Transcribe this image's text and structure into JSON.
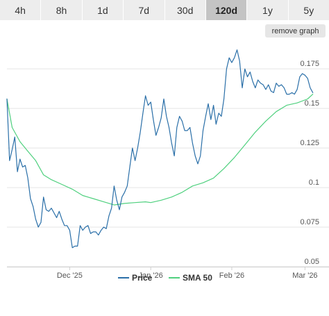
{
  "tabs": [
    {
      "label": "4h",
      "active": false
    },
    {
      "label": "8h",
      "active": false
    },
    {
      "label": "1d",
      "active": false
    },
    {
      "label": "7d",
      "active": false
    },
    {
      "label": "30d",
      "active": false
    },
    {
      "label": "120d",
      "active": true
    },
    {
      "label": "1y",
      "active": false
    },
    {
      "label": "5y",
      "active": false
    }
  ],
  "remove_graph_label": "remove graph",
  "colors": {
    "price": "#2a6fa8",
    "sma": "#4fd07e",
    "grid": "#e5e5e5",
    "axis_line": "#cfcfcf",
    "tab_bg": "#ededed",
    "tab_active_bg": "#c4c4c4"
  },
  "chart_data": {
    "type": "line",
    "y_axis": {
      "position": "right",
      "min": 0.05,
      "max": 0.19,
      "ticks": [
        0.05,
        0.075,
        0.1,
        0.125,
        0.15,
        0.175
      ],
      "tick_labels": [
        "0.05",
        "0.075",
        "0.1",
        "0.125",
        "0.15",
        "0.175"
      ]
    },
    "x_axis": {
      "start": "2025-11-07",
      "end": "2026-03-07",
      "ticks": [
        "2025-12-01",
        "2026-01-01",
        "2026-02-01",
        "2026-03-01"
      ],
      "tick_labels": [
        "Dec '25",
        "Jan '26",
        "Feb '26",
        "Mar '26"
      ]
    },
    "grid": true,
    "legend": {
      "placement": "bottom-center"
    },
    "series": [
      {
        "name": "Price",
        "color": "#2a6fa8",
        "points": [
          [
            "2025-11-07",
            0.156
          ],
          [
            "2025-11-08",
            0.117
          ],
          [
            "2025-11-09",
            0.124
          ],
          [
            "2025-11-10",
            0.132
          ],
          [
            "2025-11-11",
            0.11
          ],
          [
            "2025-11-12",
            0.118
          ],
          [
            "2025-11-13",
            0.113
          ],
          [
            "2025-11-14",
            0.114
          ],
          [
            "2025-11-15",
            0.106
          ],
          [
            "2025-11-16",
            0.093
          ],
          [
            "2025-11-17",
            0.088
          ],
          [
            "2025-11-18",
            0.08
          ],
          [
            "2025-11-19",
            0.075
          ],
          [
            "2025-11-20",
            0.078
          ],
          [
            "2025-11-21",
            0.094
          ],
          [
            "2025-11-22",
            0.086
          ],
          [
            "2025-11-23",
            0.085
          ],
          [
            "2025-11-24",
            0.087
          ],
          [
            "2025-11-25",
            0.084
          ],
          [
            "2025-11-26",
            0.081
          ],
          [
            "2025-11-27",
            0.085
          ],
          [
            "2025-11-28",
            0.08
          ],
          [
            "2025-11-29",
            0.076
          ],
          [
            "2025-11-30",
            0.076
          ],
          [
            "2025-12-01",
            0.073
          ],
          [
            "2025-12-02",
            0.062
          ],
          [
            "2025-12-03",
            0.063
          ],
          [
            "2025-12-04",
            0.063
          ],
          [
            "2025-12-05",
            0.076
          ],
          [
            "2025-12-06",
            0.073
          ],
          [
            "2025-12-07",
            0.075
          ],
          [
            "2025-12-08",
            0.076
          ],
          [
            "2025-12-09",
            0.071
          ],
          [
            "2025-12-10",
            0.072
          ],
          [
            "2025-12-11",
            0.072
          ],
          [
            "2025-12-12",
            0.07
          ],
          [
            "2025-12-13",
            0.073
          ],
          [
            "2025-12-14",
            0.075
          ],
          [
            "2025-12-15",
            0.074
          ],
          [
            "2025-12-16",
            0.082
          ],
          [
            "2025-12-17",
            0.087
          ],
          [
            "2025-12-18",
            0.101
          ],
          [
            "2025-12-19",
            0.092
          ],
          [
            "2025-12-20",
            0.086
          ],
          [
            "2025-12-21",
            0.094
          ],
          [
            "2025-12-22",
            0.097
          ],
          [
            "2025-12-23",
            0.101
          ],
          [
            "2025-12-24",
            0.113
          ],
          [
            "2025-12-25",
            0.125
          ],
          [
            "2025-12-26",
            0.117
          ],
          [
            "2025-12-27",
            0.125
          ],
          [
            "2025-12-28",
            0.135
          ],
          [
            "2025-12-29",
            0.147
          ],
          [
            "2025-12-30",
            0.158
          ],
          [
            "2025-12-31",
            0.152
          ],
          [
            "2026-01-01",
            0.154
          ],
          [
            "2026-01-02",
            0.143
          ],
          [
            "2026-01-03",
            0.133
          ],
          [
            "2026-01-04",
            0.138
          ],
          [
            "2026-01-05",
            0.144
          ],
          [
            "2026-01-06",
            0.156
          ],
          [
            "2026-01-07",
            0.145
          ],
          [
            "2026-01-08",
            0.138
          ],
          [
            "2026-01-09",
            0.128
          ],
          [
            "2026-01-10",
            0.12
          ],
          [
            "2026-01-11",
            0.138
          ],
          [
            "2026-01-12",
            0.145
          ],
          [
            "2026-01-13",
            0.142
          ],
          [
            "2026-01-14",
            0.136
          ],
          [
            "2026-01-15",
            0.136
          ],
          [
            "2026-01-16",
            0.138
          ],
          [
            "2026-01-17",
            0.128
          ],
          [
            "2026-01-18",
            0.12
          ],
          [
            "2026-01-19",
            0.115
          ],
          [
            "2026-01-20",
            0.12
          ],
          [
            "2026-01-21",
            0.136
          ],
          [
            "2026-01-22",
            0.145
          ],
          [
            "2026-01-23",
            0.153
          ],
          [
            "2026-01-24",
            0.143
          ],
          [
            "2026-01-25",
            0.152
          ],
          [
            "2026-01-26",
            0.14
          ],
          [
            "2026-01-27",
            0.147
          ],
          [
            "2026-01-28",
            0.145
          ],
          [
            "2026-01-29",
            0.156
          ],
          [
            "2026-01-30",
            0.175
          ],
          [
            "2026-01-31",
            0.182
          ],
          [
            "2026-02-01",
            0.179
          ],
          [
            "2026-02-02",
            0.182
          ],
          [
            "2026-02-03",
            0.187
          ],
          [
            "2026-02-04",
            0.18
          ],
          [
            "2026-02-05",
            0.163
          ],
          [
            "2026-02-06",
            0.175
          ],
          [
            "2026-02-07",
            0.17
          ],
          [
            "2026-02-08",
            0.173
          ],
          [
            "2026-02-09",
            0.167
          ],
          [
            "2026-02-10",
            0.163
          ],
          [
            "2026-02-11",
            0.168
          ],
          [
            "2026-02-12",
            0.166
          ],
          [
            "2026-02-13",
            0.165
          ],
          [
            "2026-02-14",
            0.162
          ],
          [
            "2026-02-15",
            0.165
          ],
          [
            "2026-02-16",
            0.161
          ],
          [
            "2026-02-17",
            0.16
          ],
          [
            "2026-02-18",
            0.166
          ],
          [
            "2026-02-19",
            0.164
          ],
          [
            "2026-02-20",
            0.165
          ],
          [
            "2026-02-21",
            0.163
          ],
          [
            "2026-02-22",
            0.159
          ],
          [
            "2026-02-23",
            0.159
          ],
          [
            "2026-02-24",
            0.16
          ],
          [
            "2026-02-25",
            0.159
          ],
          [
            "2026-02-26",
            0.162
          ],
          [
            "2026-02-27",
            0.17
          ],
          [
            "2026-02-28",
            0.172
          ],
          [
            "2026-03-01",
            0.171
          ],
          [
            "2026-03-02",
            0.169
          ],
          [
            "2026-03-03",
            0.163
          ],
          [
            "2026-03-04",
            0.16
          ]
        ]
      },
      {
        "name": "SMA 50",
        "color": "#4fd07e",
        "points": [
          [
            "2025-11-07",
            0.156
          ],
          [
            "2025-11-09",
            0.138
          ],
          [
            "2025-11-12",
            0.129
          ],
          [
            "2025-11-15",
            0.123
          ],
          [
            "2025-11-18",
            0.117
          ],
          [
            "2025-11-21",
            0.108
          ],
          [
            "2025-11-24",
            0.105
          ],
          [
            "2025-11-28",
            0.102
          ],
          [
            "2025-12-02",
            0.099
          ],
          [
            "2025-12-06",
            0.095
          ],
          [
            "2025-12-10",
            0.093
          ],
          [
            "2025-12-14",
            0.091
          ],
          [
            "2025-12-18",
            0.089
          ],
          [
            "2025-12-22",
            0.09
          ],
          [
            "2025-12-26",
            0.0905
          ],
          [
            "2025-12-30",
            0.091
          ],
          [
            "2026-01-01",
            0.0905
          ],
          [
            "2026-01-05",
            0.092
          ],
          [
            "2026-01-09",
            0.094
          ],
          [
            "2026-01-13",
            0.097
          ],
          [
            "2026-01-17",
            0.101
          ],
          [
            "2026-01-21",
            0.103
          ],
          [
            "2026-01-25",
            0.106
          ],
          [
            "2026-01-29",
            0.112
          ],
          [
            "2026-02-02",
            0.119
          ],
          [
            "2026-02-06",
            0.127
          ],
          [
            "2026-02-10",
            0.135
          ],
          [
            "2026-02-14",
            0.142
          ],
          [
            "2026-02-18",
            0.148
          ],
          [
            "2026-02-22",
            0.152
          ],
          [
            "2026-02-26",
            0.1535
          ],
          [
            "2026-03-02",
            0.156
          ],
          [
            "2026-03-04",
            0.159
          ]
        ]
      }
    ]
  }
}
